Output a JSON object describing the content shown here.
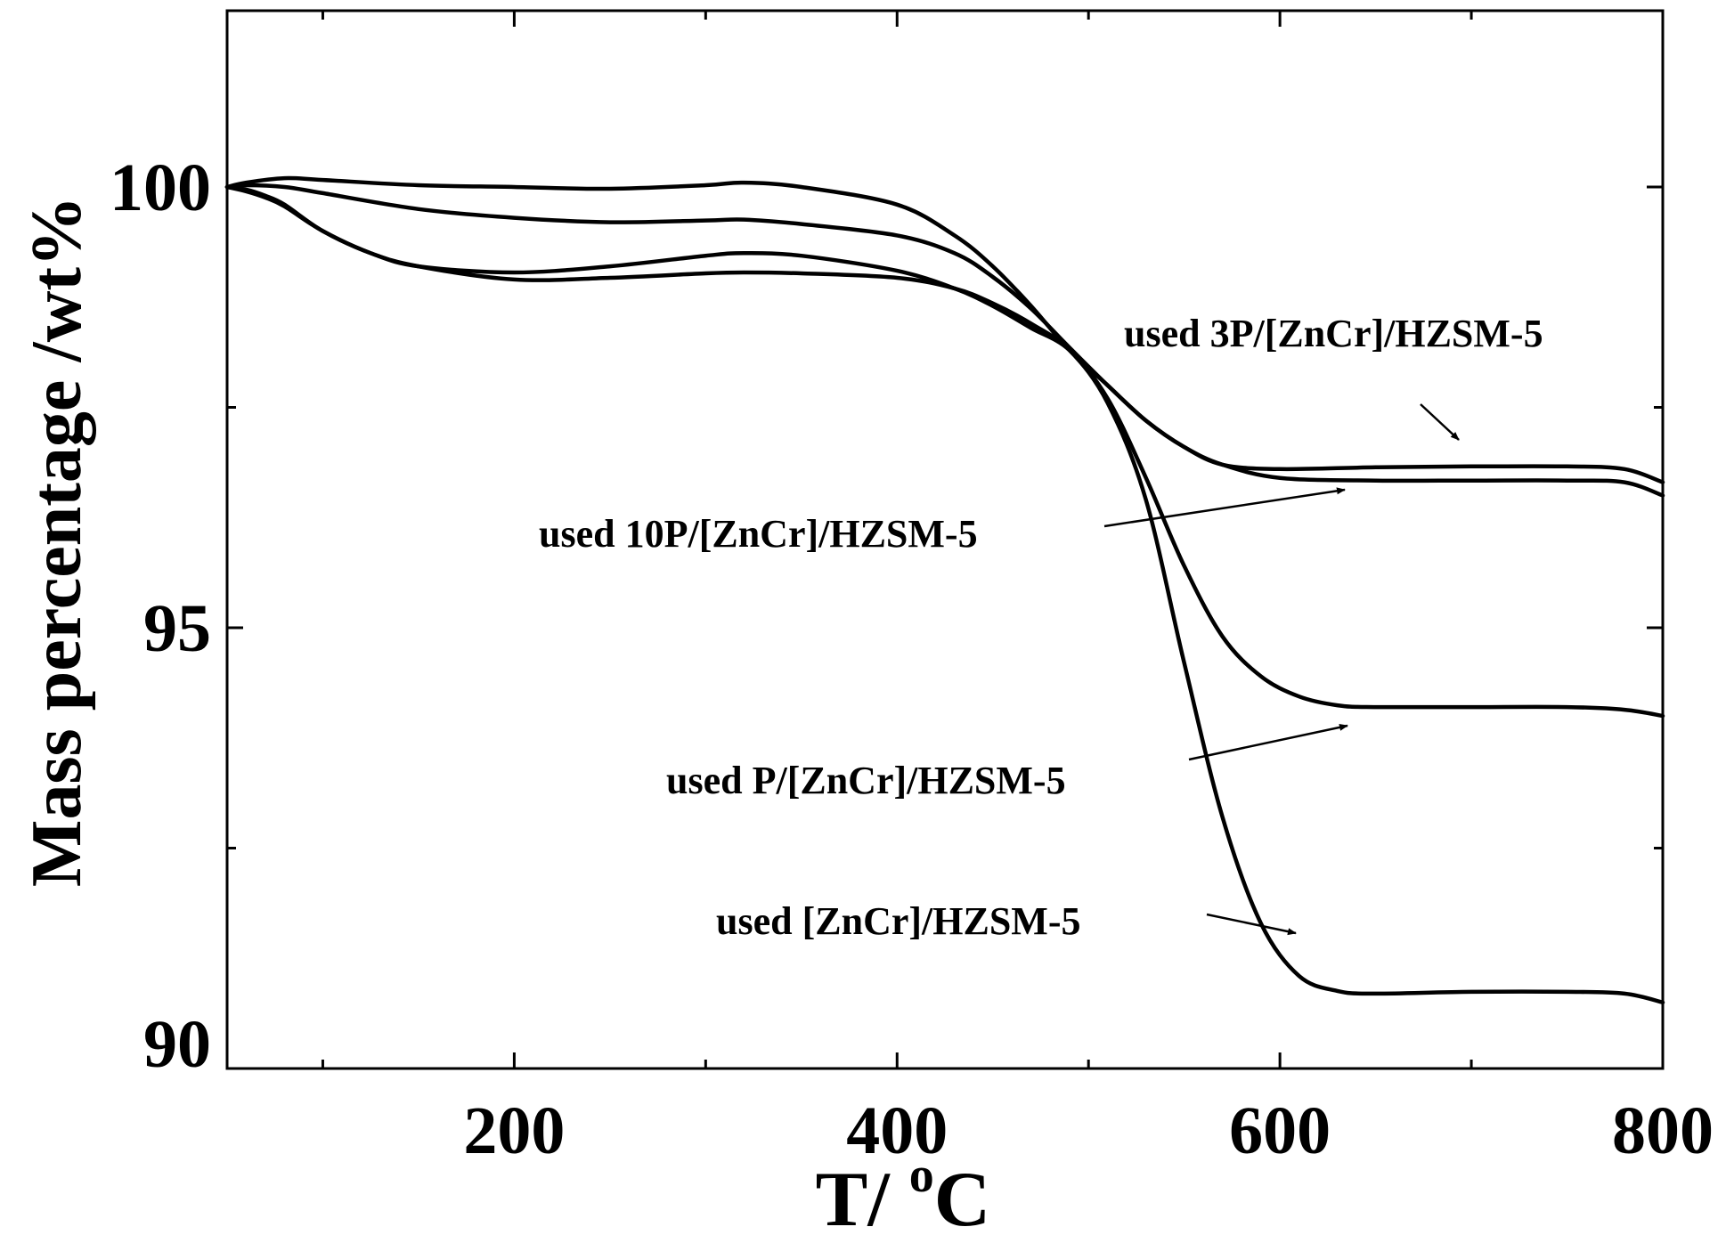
{
  "chart_data": {
    "type": "line",
    "title": "",
    "xlabel": "T/ ",
    "xlabel_sup": "o",
    "xlabel_unit": "C",
    "ylabel": "Mass percentage /wt%",
    "xlim": [
      50,
      800
    ],
    "ylim": [
      90,
      102
    ],
    "x_major_ticks": [
      200,
      400,
      600,
      800
    ],
    "x_minor_ticks": [
      100,
      300,
      500,
      700
    ],
    "y_major_ticks": [
      90,
      95,
      100
    ],
    "y_minor_ticks": [
      92.5,
      97.5
    ],
    "x_tick_labels": [
      "200",
      "400",
      "600",
      "800"
    ],
    "y_tick_labels": [
      "90",
      "95",
      "100"
    ],
    "grid": false,
    "legend": "none",
    "series": [
      {
        "name": "used 3P/[ZnCr]/HZSM-5",
        "x": [
          50,
          60,
          80,
          100,
          150,
          200,
          250,
          300,
          320,
          350,
          400,
          430,
          450,
          470,
          490,
          510,
          530,
          550,
          570,
          600,
          650,
          700,
          750,
          780,
          800
        ],
        "y": [
          100.0,
          100.05,
          100.1,
          100.08,
          100.02,
          100.0,
          99.98,
          100.02,
          100.05,
          100.0,
          99.8,
          99.45,
          99.1,
          98.65,
          98.15,
          97.75,
          97.35,
          97.05,
          96.85,
          96.8,
          96.82,
          96.83,
          96.83,
          96.8,
          96.65
        ]
      },
      {
        "name": "used 10P/[ZnCr]/HZSM-5",
        "x": [
          50,
          60,
          80,
          100,
          150,
          200,
          250,
          300,
          320,
          350,
          400,
          430,
          450,
          470,
          490,
          510,
          530,
          550,
          570,
          600,
          650,
          700,
          750,
          780,
          800
        ],
        "y": [
          100.0,
          100.02,
          100.0,
          99.93,
          99.75,
          99.65,
          99.6,
          99.62,
          99.63,
          99.58,
          99.45,
          99.25,
          98.98,
          98.62,
          98.18,
          97.75,
          97.35,
          97.05,
          96.85,
          96.7,
          96.67,
          96.67,
          96.67,
          96.65,
          96.5
        ]
      },
      {
        "name": "used P/[ZnCr]/HZSM-5",
        "x": [
          50,
          60,
          70,
          80,
          100,
          125,
          150,
          200,
          250,
          300,
          320,
          350,
          400,
          430,
          450,
          470,
          490,
          510,
          530,
          550,
          570,
          590,
          610,
          630,
          650,
          700,
          750,
          780,
          800
        ],
        "y": [
          100.0,
          99.97,
          99.9,
          99.8,
          99.5,
          99.25,
          99.1,
          99.03,
          99.1,
          99.22,
          99.25,
          99.22,
          99.05,
          98.85,
          98.65,
          98.4,
          98.15,
          97.6,
          96.7,
          95.7,
          94.9,
          94.45,
          94.22,
          94.12,
          94.1,
          94.1,
          94.1,
          94.07,
          94.0
        ]
      },
      {
        "name": "used [ZnCr]/HZSM-5",
        "x": [
          50,
          60,
          70,
          80,
          100,
          125,
          150,
          200,
          250,
          300,
          320,
          350,
          400,
          430,
          450,
          470,
          490,
          510,
          530,
          550,
          570,
          590,
          610,
          630,
          650,
          700,
          750,
          780,
          800
        ],
        "y": [
          100.0,
          99.95,
          99.88,
          99.78,
          99.5,
          99.25,
          99.1,
          98.95,
          98.97,
          99.02,
          99.03,
          99.02,
          98.97,
          98.85,
          98.68,
          98.45,
          98.15,
          97.55,
          96.45,
          94.6,
          92.85,
          91.65,
          91.05,
          90.88,
          90.85,
          90.87,
          90.87,
          90.85,
          90.75
        ]
      }
    ],
    "annotations": [
      {
        "text": "used 3P/[ZnCr]/HZSM-5",
        "series": "used 3P/[ZnCr]/HZSM-5"
      },
      {
        "text": "used 10P/[ZnCr]/HZSM-5",
        "series": "used 10P/[ZnCr]/HZSM-5"
      },
      {
        "text": "used P/[ZnCr]/HZSM-5",
        "series": "used P/[ZnCr]/HZSM-5"
      },
      {
        "text": "used [ZnCr]/HZSM-5",
        "series": "used [ZnCr]/HZSM-5"
      }
    ]
  }
}
